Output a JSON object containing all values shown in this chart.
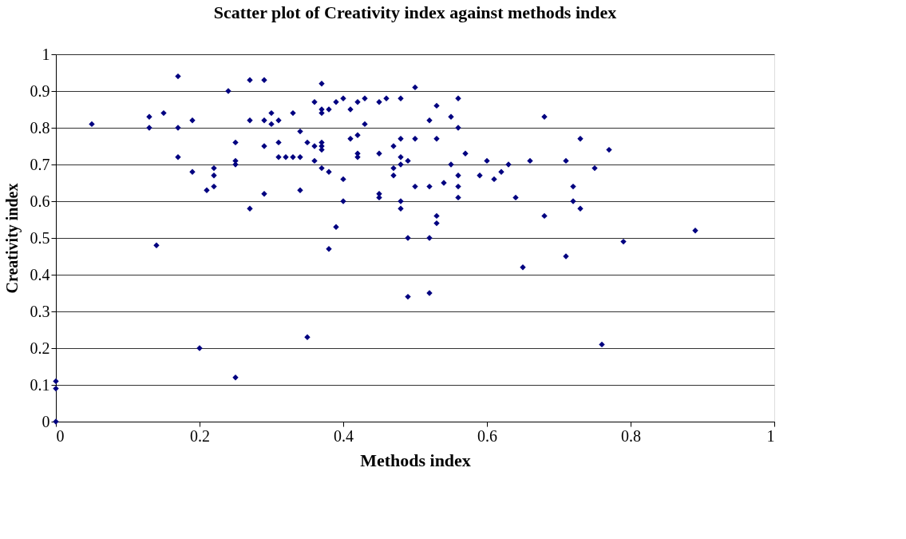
{
  "chart_data": {
    "type": "scatter",
    "title": "Scatter plot of Creativity index against methods index",
    "xlabel": "Methods index",
    "ylabel": "Creativity index",
    "xlim": [
      0,
      1
    ],
    "xticks": [
      0,
      0.2,
      0.4,
      0.6,
      0.8,
      1
    ],
    "ylim": [
      0,
      1
    ],
    "yticks": [
      0,
      0.1,
      0.2,
      0.3,
      0.4,
      0.5,
      0.6,
      0.7,
      0.8,
      0.9,
      1
    ],
    "grid": "y",
    "legend": false,
    "marker": "diamond",
    "series": [
      {
        "color": "#000080",
        "x": [
          0,
          0,
          0,
          0.05,
          0.13,
          0.13,
          0.15,
          0.14,
          0.17,
          0.17,
          0.17,
          0.19,
          0.19,
          0.2,
          0.21,
          0.22,
          0.22,
          0.22,
          0.24,
          0.25,
          0.25,
          0.25,
          0.25,
          0.27,
          0.27,
          0.27,
          0.29,
          0.29,
          0.29,
          0.29,
          0.3,
          0.3,
          0.31,
          0.31,
          0.31,
          0.32,
          0.33,
          0.33,
          0.34,
          0.34,
          0.34,
          0.35,
          0.35,
          0.36,
          0.36,
          0.36,
          0.37,
          0.37,
          0.37,
          0.37,
          0.37,
          0.37,
          0.37,
          0.38,
          0.38,
          0.38,
          0.39,
          0.39,
          0.4,
          0.4,
          0.4,
          0.41,
          0.41,
          0.42,
          0.42,
          0.42,
          0.42,
          0.43,
          0.43,
          0.45,
          0.45,
          0.45,
          0.45,
          0.46,
          0.47,
          0.47,
          0.47,
          0.48,
          0.48,
          0.48,
          0.48,
          0.48,
          0.48,
          0.49,
          0.49,
          0.49,
          0.5,
          0.5,
          0.5,
          0.52,
          0.52,
          0.52,
          0.52,
          0.53,
          0.53,
          0.53,
          0.53,
          0.54,
          0.55,
          0.55,
          0.56,
          0.56,
          0.56,
          0.56,
          0.56,
          0.57,
          0.59,
          0.6,
          0.61,
          0.62,
          0.63,
          0.64,
          0.65,
          0.66,
          0.68,
          0.68,
          0.71,
          0.71,
          0.72,
          0.72,
          0.73,
          0.73,
          0.75,
          0.76,
          0.77,
          0.79,
          0.89
        ],
        "values": [
          0,
          0.09,
          0.11,
          0.81,
          0.8,
          0.83,
          0.84,
          0.48,
          0.94,
          0.8,
          0.72,
          0.82,
          0.68,
          0.2,
          0.63,
          0.64,
          0.69,
          0.67,
          0.9,
          0.76,
          0.71,
          0.7,
          0.12,
          0.93,
          0.82,
          0.58,
          0.93,
          0.82,
          0.75,
          0.62,
          0.84,
          0.81,
          0.82,
          0.76,
          0.72,
          0.72,
          0.72,
          0.84,
          0.72,
          0.79,
          0.63,
          0.76,
          0.23,
          0.87,
          0.75,
          0.71,
          0.92,
          0.85,
          0.84,
          0.76,
          0.75,
          0.74,
          0.69,
          0.85,
          0.68,
          0.47,
          0.87,
          0.53,
          0.88,
          0.66,
          0.6,
          0.85,
          0.77,
          0.87,
          0.78,
          0.73,
          0.72,
          0.88,
          0.81,
          0.87,
          0.73,
          0.62,
          0.61,
          0.88,
          0.75,
          0.69,
          0.67,
          0.88,
          0.77,
          0.72,
          0.7,
          0.6,
          0.58,
          0.71,
          0.5,
          0.34,
          0.91,
          0.77,
          0.64,
          0.82,
          0.64,
          0.5,
          0.35,
          0.86,
          0.77,
          0.56,
          0.54,
          0.65,
          0.83,
          0.7,
          0.88,
          0.8,
          0.67,
          0.64,
          0.61,
          0.73,
          0.67,
          0.71,
          0.66,
          0.68,
          0.7,
          0.61,
          0.42,
          0.71,
          0.83,
          0.56,
          0.71,
          0.45,
          0.64,
          0.6,
          0.77,
          0.58,
          0.69,
          0.21,
          0.74,
          0.49,
          0.52
        ]
      }
    ]
  }
}
